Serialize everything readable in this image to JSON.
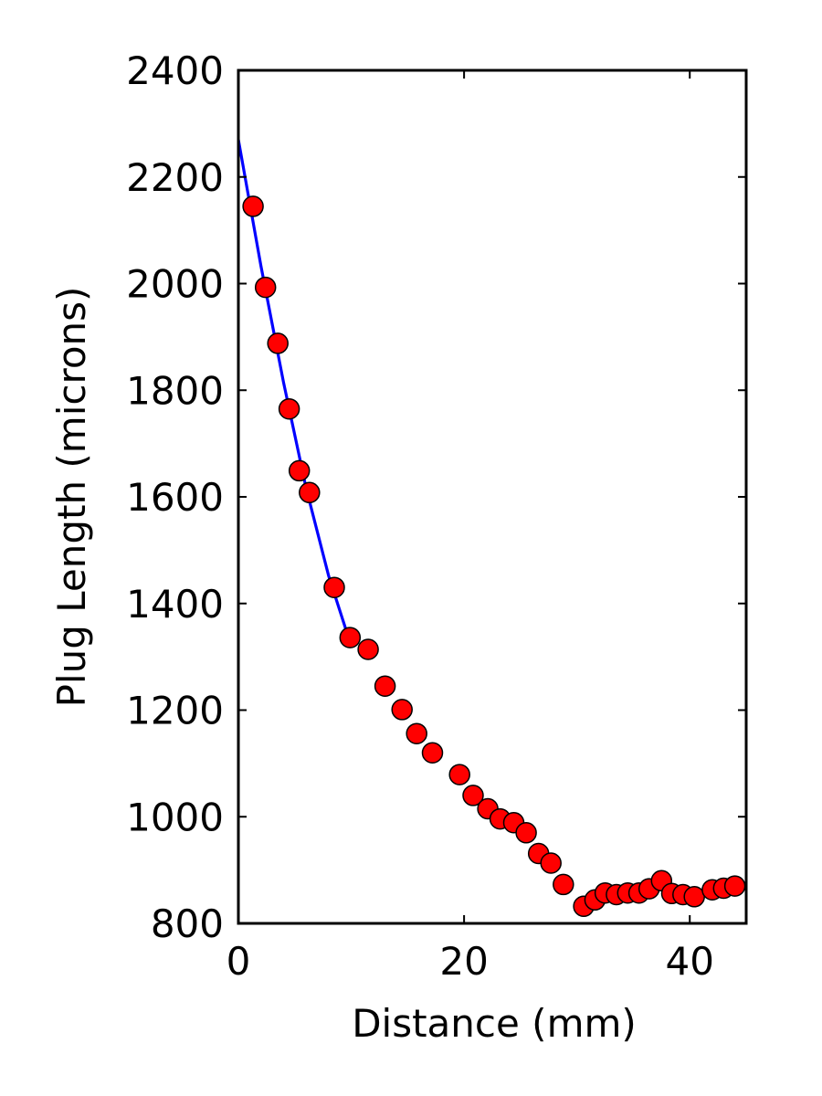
{
  "chart_data": {
    "type": "scatter",
    "title": "",
    "xlabel": "Distance (mm)",
    "ylabel": "Plug Length (microns)",
    "xlim": [
      0,
      45
    ],
    "ylim": [
      800,
      2400
    ],
    "xticks": [
      0,
      20,
      40
    ],
    "yticks": [
      800,
      1000,
      1200,
      1400,
      1600,
      1800,
      2000,
      2200,
      2400
    ],
    "grid": false,
    "colors": {
      "points": "#ff0000",
      "point_edge": "#000000",
      "fit_line": "#0000ff",
      "axes": "#000000"
    },
    "series": [
      {
        "kind": "points",
        "x": [
          1.3,
          2.4,
          3.5,
          4.5,
          5.4,
          6.3,
          8.5,
          9.9,
          11.5,
          13.0,
          14.5,
          15.8,
          17.2,
          19.6,
          20.8,
          22.1,
          23.2,
          24.4,
          25.5,
          26.6,
          27.7,
          28.8,
          30.6,
          31.6,
          32.5,
          33.5,
          34.5,
          35.5,
          36.4,
          37.5,
          38.4,
          39.4,
          40.4,
          42.0,
          43.0,
          44.0
        ],
        "y": [
          2145,
          1993,
          1888,
          1765,
          1649,
          1608,
          1430,
          1336,
          1314,
          1245,
          1201,
          1156,
          1120,
          1079,
          1040,
          1015,
          996,
          989,
          970,
          931,
          913,
          873,
          832,
          844,
          857,
          854,
          857,
          857,
          865,
          880,
          856,
          854,
          850,
          863,
          866,
          870
        ]
      },
      {
        "kind": "line",
        "x": [
          0,
          2,
          4,
          6,
          8,
          10
        ],
        "y": [
          2270,
          2033,
          1815,
          1617,
          1452,
          1320
        ]
      }
    ]
  }
}
